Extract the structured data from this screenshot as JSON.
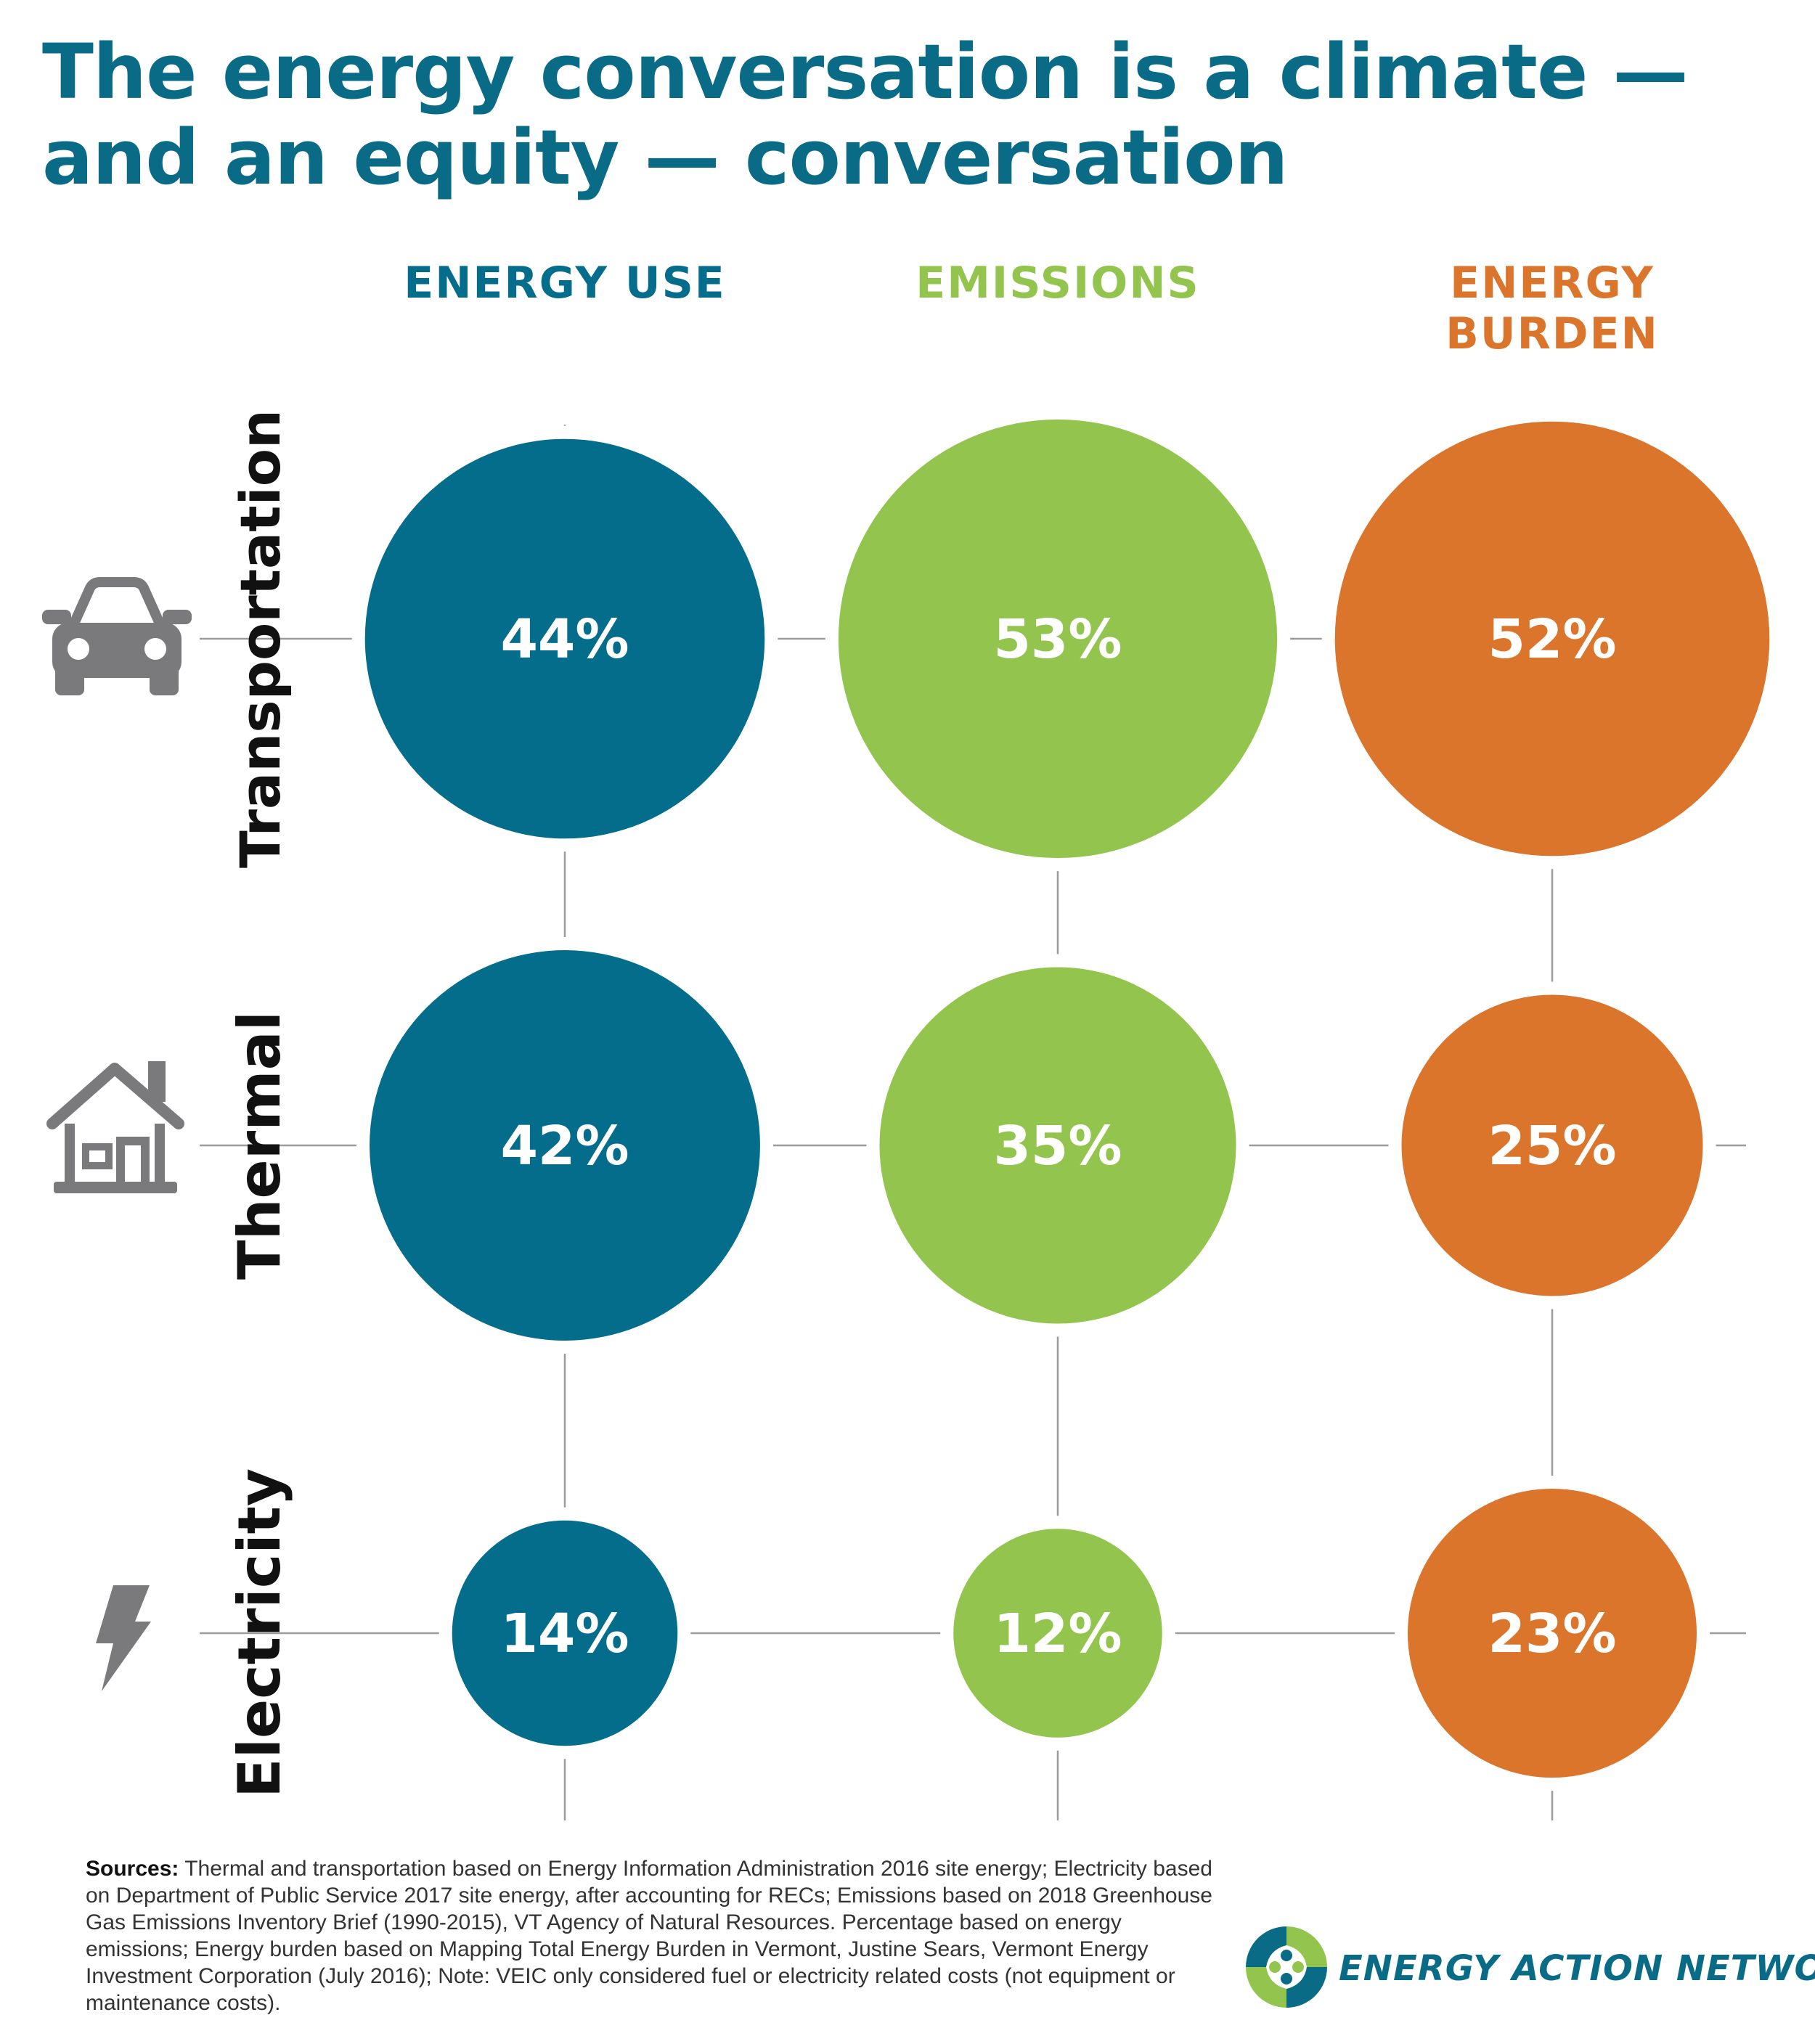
{
  "title": {
    "line1": "The energy conversation is a climate —",
    "line2": "and an equity — conversation"
  },
  "colors": {
    "energy_use": "#046d8b",
    "emissions": "#93c54e",
    "energy_burden": "#db752c",
    "icon": "#7a7a7c",
    "grid_line": "#9b9b9b",
    "row_label": "#111111"
  },
  "icons": [
    "car-icon",
    "house-icon",
    "lightning-bolt-icon"
  ],
  "chart_data": {
    "type": "bubble-matrix",
    "columns": [
      {
        "key": "energy_use",
        "label_lines": [
          "ENERGY USE"
        ]
      },
      {
        "key": "emissions",
        "label_lines": [
          "EMISSIONS"
        ]
      },
      {
        "key": "energy_burden",
        "label_lines": [
          "ENERGY",
          "BURDEN"
        ]
      }
    ],
    "rows": [
      {
        "name": "Transportation",
        "icon": "car-icon"
      },
      {
        "name": "Thermal",
        "icon": "house-icon"
      },
      {
        "name": "Electricity",
        "icon": "lightning-bolt-icon"
      }
    ],
    "values": [
      [
        44,
        53,
        52
      ],
      [
        42,
        35,
        25
      ],
      [
        14,
        12,
        23
      ]
    ],
    "labels": [
      [
        "44%",
        "53%",
        "52%"
      ],
      [
        "42%",
        "35%",
        "25%"
      ],
      [
        "14%",
        "12%",
        "23%"
      ]
    ]
  },
  "sources": {
    "label": "Sources:",
    "text": "Thermal and transportation based on Energy Information Administration 2016 site energy; Electricity based on Department of Public Service 2017 site energy, after accounting for RECs; Emissions based on 2018 Greenhouse Gas Emissions Inventory Brief (1990-2015), VT Agency of Natural Resources. Percentage based on energy emissions; Energy burden based on Mapping Total Energy Burden in Vermont, Justine Sears, Vermont Energy Investment Corporation (July 2016); Note: VEIC only considered fuel or electricity related costs (not equipment or maintenance costs)."
  },
  "logo": {
    "text": "ENERGY ACTION NETWORK",
    "colors": [
      "#0a6b87",
      "#93c54e"
    ]
  }
}
